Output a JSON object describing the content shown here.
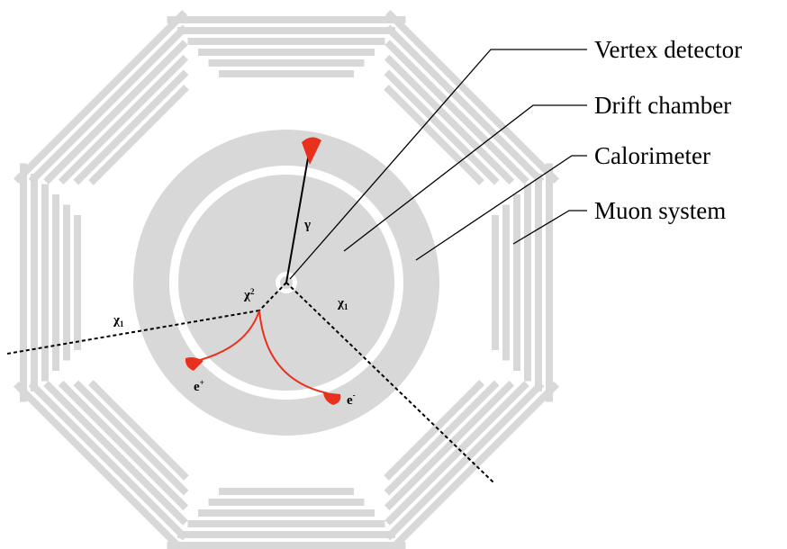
{
  "labels": {
    "vertex_detector": "Vertex detector",
    "drift_chamber": "Drift chamber",
    "calorimeter": "Calorimeter",
    "muon_system": "Muon system"
  },
  "particles": {
    "photon": "γ",
    "chi": "χ",
    "chi1_sub": "1",
    "chi2_sub": "2",
    "electron_base": "e",
    "positron_sup": "+",
    "electron_sup": "-"
  },
  "colors": {
    "detector_gray": "#d8d8d8",
    "track_red": "#e8301c",
    "ink": "#000000"
  }
}
